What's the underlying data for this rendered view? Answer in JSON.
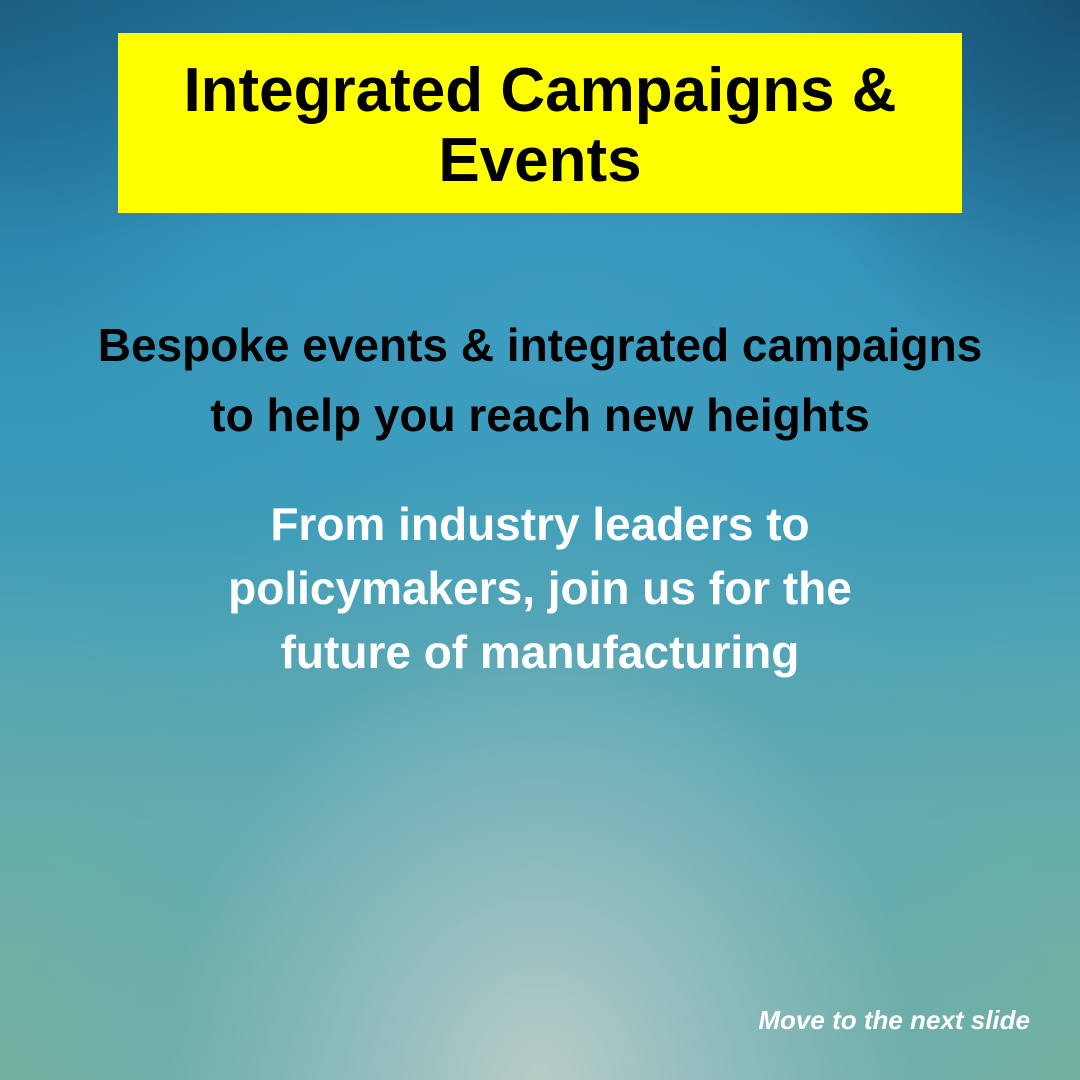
{
  "colors": {
    "title_background": "#ffff00",
    "title_text": "#000000",
    "subtitle_text": "#000000",
    "body_text": "#ffffff",
    "link_text": "#ffffff"
  },
  "slide": {
    "title_line1": "Integrated Campaigns &",
    "title_line2": "Events",
    "subtitle_line1": "Bespoke events & integrated campaigns",
    "subtitle_line2": "to help you reach new heights",
    "body_line1": "From industry leaders to",
    "body_line2": "policymakers, join us for the",
    "body_line3": "future of manufacturing",
    "next_label": "Move to the next slide"
  }
}
